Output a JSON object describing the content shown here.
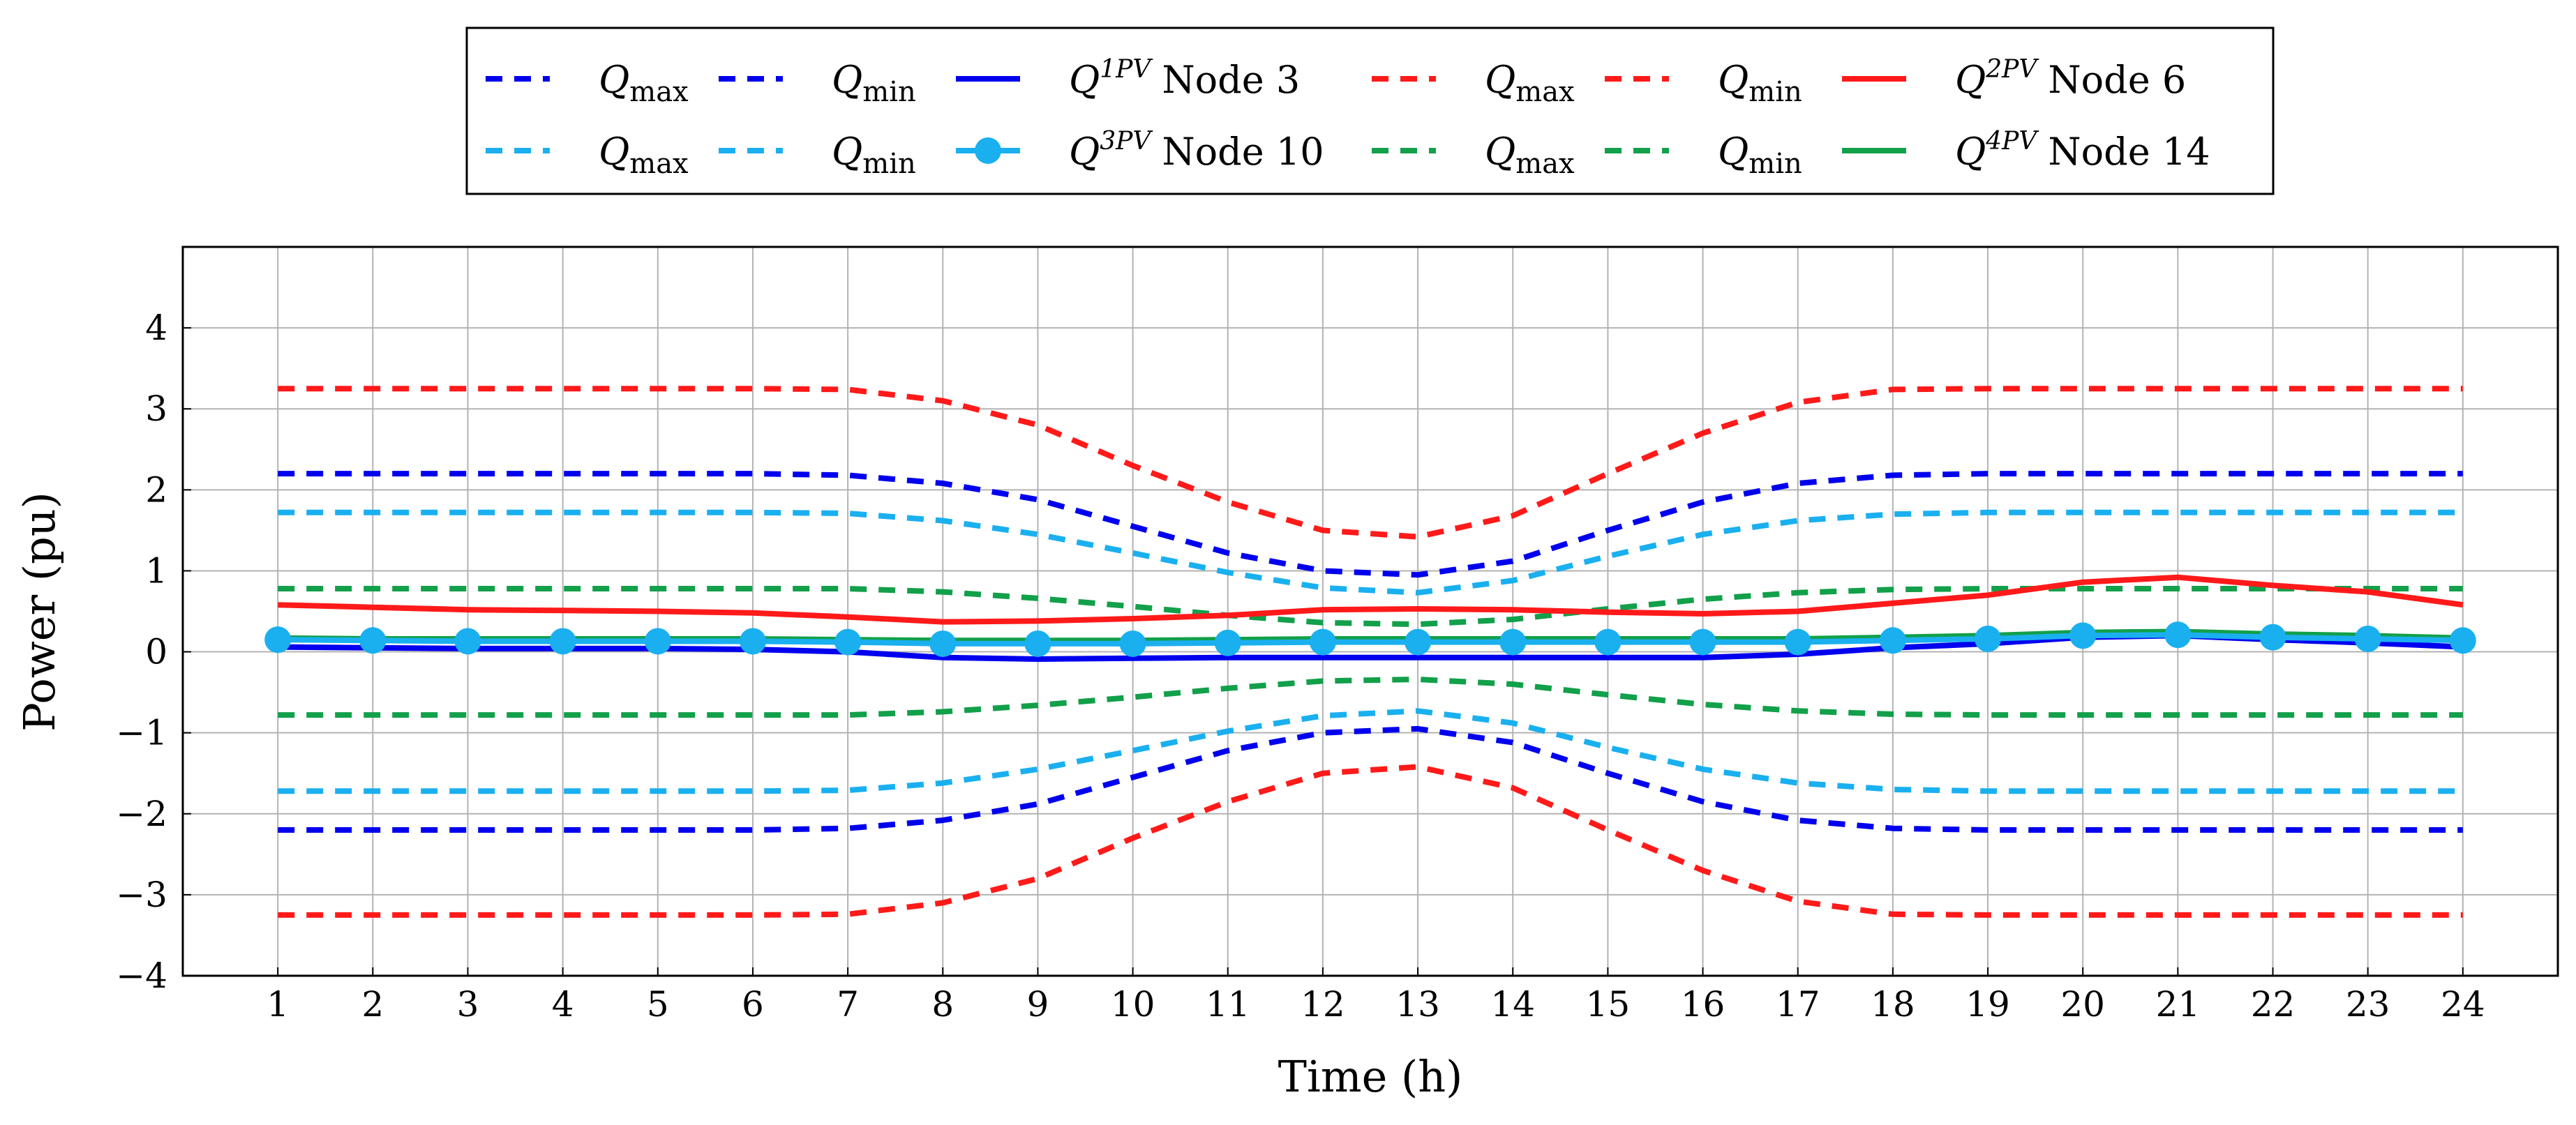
{
  "chart_data": {
    "type": "line",
    "title": "",
    "xlabel": "Time (h)",
    "ylabel": "Power (pu)",
    "xlim": [
      0,
      25
    ],
    "ylim": [
      -4,
      5
    ],
    "x_ticks": [
      1,
      2,
      3,
      4,
      5,
      6,
      7,
      8,
      9,
      10,
      11,
      12,
      13,
      14,
      15,
      16,
      17,
      18,
      19,
      20,
      21,
      22,
      23,
      24
    ],
    "y_ticks": [
      -4,
      -3,
      -2,
      -1,
      0,
      1,
      2,
      3,
      4
    ],
    "y_tick_labels": [
      "−4",
      "−3",
      "−2",
      "−1",
      "0",
      "1",
      "2",
      "3",
      "4"
    ],
    "grid": true,
    "legend_position": "top-center",
    "x": [
      1,
      2,
      3,
      4,
      5,
      6,
      7,
      8,
      9,
      10,
      11,
      12,
      13,
      14,
      15,
      16,
      17,
      18,
      19,
      20,
      21,
      22,
      23,
      24
    ],
    "series": [
      {
        "name": "Q max",
        "node": "Node 3",
        "color": "#0000ee",
        "style": "dashed",
        "marker": false,
        "values": [
          2.2,
          2.2,
          2.2,
          2.2,
          2.2,
          2.2,
          2.18,
          2.08,
          1.88,
          1.55,
          1.22,
          1.0,
          0.95,
          1.12,
          1.5,
          1.85,
          2.08,
          2.18,
          2.2,
          2.2,
          2.2,
          2.2,
          2.2,
          2.2
        ]
      },
      {
        "name": "Q min",
        "node": "Node 3",
        "color": "#0000ee",
        "style": "dashed",
        "marker": false,
        "values": [
          -2.2,
          -2.2,
          -2.2,
          -2.2,
          -2.2,
          -2.2,
          -2.18,
          -2.08,
          -1.88,
          -1.55,
          -1.22,
          -1.0,
          -0.95,
          -1.12,
          -1.5,
          -1.85,
          -2.08,
          -2.18,
          -2.2,
          -2.2,
          -2.2,
          -2.2,
          -2.2,
          -2.2
        ]
      },
      {
        "name": "Q1PV Node 3",
        "node": "Node 3",
        "color": "#0000ee",
        "style": "solid",
        "marker": false,
        "values": [
          0.06,
          0.05,
          0.04,
          0.04,
          0.04,
          0.03,
          0.0,
          -0.07,
          -0.09,
          -0.08,
          -0.07,
          -0.07,
          -0.07,
          -0.07,
          -0.07,
          -0.07,
          -0.03,
          0.05,
          0.1,
          0.18,
          0.2,
          0.15,
          0.11,
          0.06
        ]
      },
      {
        "name": "Q max",
        "node": "Node 6",
        "color": "#ff1a1a",
        "style": "dashed",
        "marker": false,
        "values": [
          3.25,
          3.25,
          3.25,
          3.25,
          3.25,
          3.25,
          3.24,
          3.1,
          2.8,
          2.3,
          1.85,
          1.5,
          1.42,
          1.68,
          2.2,
          2.7,
          3.08,
          3.24,
          3.25,
          3.25,
          3.25,
          3.25,
          3.25,
          3.25
        ]
      },
      {
        "name": "Q min",
        "node": "Node 6",
        "color": "#ff1a1a",
        "style": "dashed",
        "marker": false,
        "values": [
          -3.25,
          -3.25,
          -3.25,
          -3.25,
          -3.25,
          -3.25,
          -3.24,
          -3.1,
          -2.8,
          -2.3,
          -1.85,
          -1.5,
          -1.42,
          -1.68,
          -2.2,
          -2.7,
          -3.08,
          -3.24,
          -3.25,
          -3.25,
          -3.25,
          -3.25,
          -3.25,
          -3.25
        ]
      },
      {
        "name": "Q2PV Node 6",
        "node": "Node 6",
        "color": "#ff1a1a",
        "style": "solid",
        "marker": false,
        "values": [
          0.58,
          0.55,
          0.52,
          0.51,
          0.5,
          0.48,
          0.43,
          0.37,
          0.38,
          0.41,
          0.45,
          0.52,
          0.53,
          0.52,
          0.49,
          0.47,
          0.5,
          0.6,
          0.7,
          0.86,
          0.92,
          0.82,
          0.74,
          0.58
        ]
      },
      {
        "name": "Q max",
        "node": "Node 10",
        "color": "#1ab0f0",
        "style": "dashed",
        "marker": false,
        "values": [
          1.72,
          1.72,
          1.72,
          1.72,
          1.72,
          1.72,
          1.71,
          1.62,
          1.45,
          1.22,
          0.98,
          0.79,
          0.73,
          0.88,
          1.18,
          1.45,
          1.62,
          1.7,
          1.72,
          1.72,
          1.72,
          1.72,
          1.72,
          1.72
        ]
      },
      {
        "name": "Q min",
        "node": "Node 10",
        "color": "#1ab0f0",
        "style": "dashed",
        "marker": false,
        "values": [
          -1.72,
          -1.72,
          -1.72,
          -1.72,
          -1.72,
          -1.72,
          -1.71,
          -1.62,
          -1.45,
          -1.22,
          -0.98,
          -0.79,
          -0.73,
          -0.88,
          -1.18,
          -1.45,
          -1.62,
          -1.7,
          -1.72,
          -1.72,
          -1.72,
          -1.72,
          -1.72,
          -1.72
        ]
      },
      {
        "name": "Q3PV Node 10",
        "node": "Node 10",
        "color": "#1ab0f0",
        "style": "solid",
        "marker": true,
        "values": [
          0.15,
          0.14,
          0.13,
          0.13,
          0.13,
          0.13,
          0.12,
          0.1,
          0.1,
          0.1,
          0.11,
          0.12,
          0.12,
          0.12,
          0.12,
          0.12,
          0.12,
          0.14,
          0.16,
          0.2,
          0.21,
          0.18,
          0.16,
          0.14
        ]
      },
      {
        "name": "Q max",
        "node": "Node 14",
        "color": "#12a04a",
        "style": "dashed",
        "marker": false,
        "values": [
          0.78,
          0.78,
          0.78,
          0.78,
          0.78,
          0.78,
          0.78,
          0.74,
          0.66,
          0.56,
          0.45,
          0.36,
          0.34,
          0.4,
          0.53,
          0.65,
          0.73,
          0.77,
          0.78,
          0.78,
          0.78,
          0.78,
          0.78,
          0.78
        ]
      },
      {
        "name": "Q min",
        "node": "Node 14",
        "color": "#12a04a",
        "style": "dashed",
        "marker": false,
        "values": [
          -0.78,
          -0.78,
          -0.78,
          -0.78,
          -0.78,
          -0.78,
          -0.78,
          -0.74,
          -0.66,
          -0.56,
          -0.45,
          -0.36,
          -0.34,
          -0.4,
          -0.53,
          -0.65,
          -0.73,
          -0.77,
          -0.78,
          -0.78,
          -0.78,
          -0.78,
          -0.78,
          -0.78
        ]
      },
      {
        "name": "Q4PV Node 14",
        "node": "Node 14",
        "color": "#12a04a",
        "style": "solid",
        "marker": false,
        "values": [
          0.17,
          0.16,
          0.16,
          0.16,
          0.16,
          0.16,
          0.15,
          0.14,
          0.14,
          0.14,
          0.15,
          0.16,
          0.16,
          0.16,
          0.16,
          0.16,
          0.16,
          0.18,
          0.2,
          0.24,
          0.25,
          0.22,
          0.2,
          0.17
        ]
      }
    ],
    "legend": [
      {
        "series": 0,
        "sym": "Q",
        "sub": "max",
        "sup": "",
        "text": ""
      },
      {
        "series": 1,
        "sym": "Q",
        "sub": "min",
        "sup": "",
        "text": ""
      },
      {
        "series": 2,
        "sym": "Q",
        "sub": "",
        "sup": "1PV",
        "text": "Node 3"
      },
      {
        "series": 3,
        "sym": "Q",
        "sub": "max",
        "sup": "",
        "text": ""
      },
      {
        "series": 4,
        "sym": "Q",
        "sub": "min",
        "sup": "",
        "text": ""
      },
      {
        "series": 5,
        "sym": "Q",
        "sub": "",
        "sup": "2PV",
        "text": "Node 6"
      },
      {
        "series": 6,
        "sym": "Q",
        "sub": "max",
        "sup": "",
        "text": ""
      },
      {
        "series": 7,
        "sym": "Q",
        "sub": "min",
        "sup": "",
        "text": ""
      },
      {
        "series": 8,
        "sym": "Q",
        "sub": "",
        "sup": "3PV",
        "text": "Node 10"
      },
      {
        "series": 9,
        "sym": "Q",
        "sub": "max",
        "sup": "",
        "text": ""
      },
      {
        "series": 10,
        "sym": "Q",
        "sub": "min",
        "sup": "",
        "text": ""
      },
      {
        "series": 11,
        "sym": "Q",
        "sub": "",
        "sup": "4PV",
        "text": "Node 14"
      }
    ]
  }
}
